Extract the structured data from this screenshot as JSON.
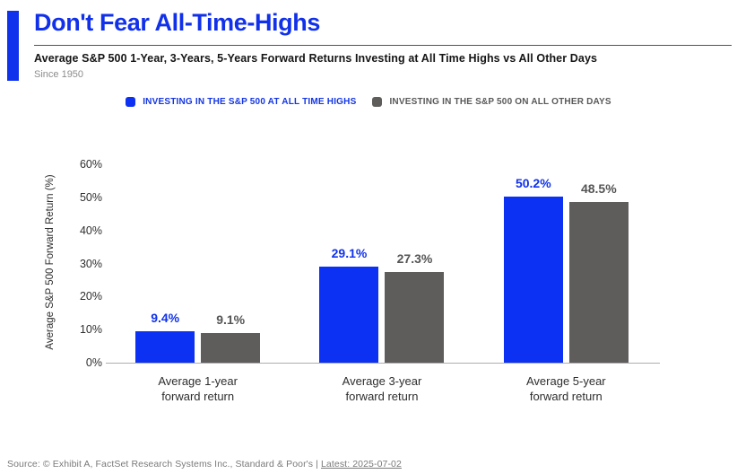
{
  "header": {
    "title": "Don't Fear All-Time-Highs",
    "subtitle": "Average S&P 500 1-Year, 3-Years, 5-Years Forward Returns Investing at All Time Highs vs All Other Days",
    "since": "Since 1950"
  },
  "colors": {
    "brand_blue": "#1032EC",
    "bar_blue": "#0C31F2",
    "bar_gray": "#5F5C5C",
    "axis_line": "#ADADAD"
  },
  "chart_data": {
    "type": "bar",
    "categories": [
      "Average 1-year\nforward return",
      "Average 3-year\nforward return",
      "Average 5-year\nforward return"
    ],
    "series": [
      {
        "name": "INVESTING IN THE S&P 500 AT ALL TIME HIGHS",
        "color": "#0C31F2",
        "label_color": "#1032EC",
        "values": [
          9.4,
          29.1,
          50.2
        ],
        "labels": [
          "9.4%",
          "29.1%",
          "50.2%"
        ]
      },
      {
        "name": "INVESTING IN THE S&P 500 ON ALL OTHER DAYS",
        "color": "#5F5C5C",
        "label_color": "#555555",
        "values": [
          9.1,
          27.3,
          48.5
        ],
        "labels": [
          "9.1%",
          "27.3%",
          "48.5%"
        ]
      }
    ],
    "title": "Don't Fear All-Time-Highs",
    "xlabel": "",
    "ylabel": "Average S&P 500 Forward Return (%)",
    "ylim": [
      0,
      60
    ],
    "yticks": [
      {
        "value": 0,
        "label": "0%"
      },
      {
        "value": 10,
        "label": "10%"
      },
      {
        "value": 20,
        "label": "20%"
      },
      {
        "value": 30,
        "label": "30%"
      },
      {
        "value": 40,
        "label": "40%"
      },
      {
        "value": 50,
        "label": "50%"
      },
      {
        "value": 60,
        "label": "60%"
      }
    ],
    "grid": false,
    "legend_position": "top"
  },
  "footer": {
    "source_prefix": "Source: © Exhibit A, FactSet Research Systems Inc., Standard & Poor's | ",
    "latest": "Latest: 2025-07-02"
  }
}
